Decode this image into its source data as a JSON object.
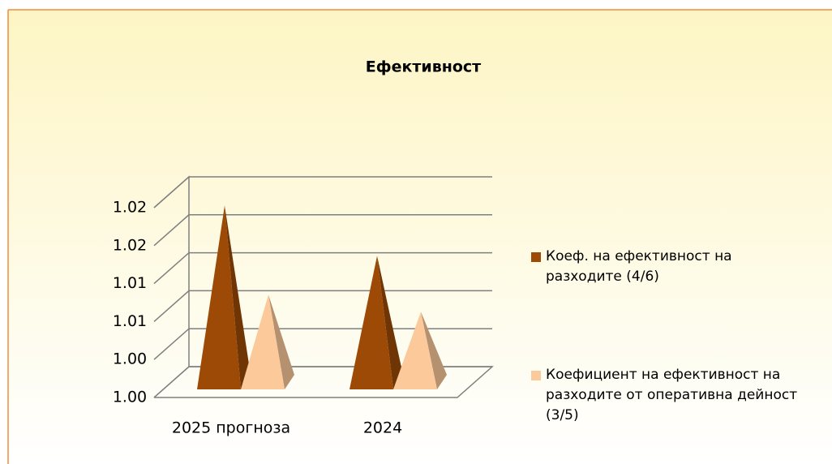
{
  "chart_data": {
    "type": "pyramid3d",
    "title": "Ефективност",
    "categories": [
      "2025 прогноза",
      "2024"
    ],
    "series": [
      {
        "name": "Коеф. на ефективност на разходите (4/6)",
        "color": "#9c4a06",
        "values": [
          1.0186,
          1.0133
        ]
      },
      {
        "name": "Коефициент на ефективност на разходите от оперативна дейност (3/5)",
        "color": "#fbc99a",
        "values": [
          1.0092,
          1.0074
        ]
      }
    ],
    "ylim": [
      1.0,
      1.02
    ],
    "yticks": [
      {
        "value": 1.0,
        "label": "1.00"
      },
      {
        "value": 1.004,
        "label": "1.00"
      },
      {
        "value": 1.008,
        "label": "1.01"
      },
      {
        "value": 1.012,
        "label": "1.01"
      },
      {
        "value": 1.016,
        "label": "1.02"
      },
      {
        "value": 1.02,
        "label": "1.02"
      }
    ],
    "grid": true,
    "legend": "right"
  }
}
